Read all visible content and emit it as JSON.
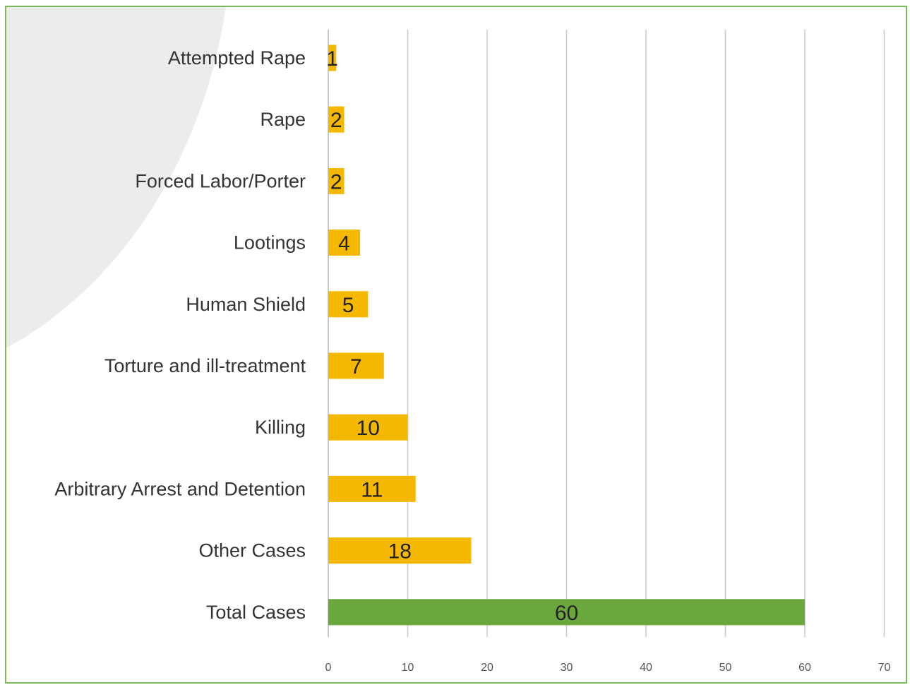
{
  "chart_data": {
    "type": "bar",
    "orientation": "horizontal",
    "categories": [
      "Attempted Rape",
      "Rape",
      "Forced Labor/Porter",
      "Lootings",
      "Human Shield",
      "Torture and ill-treatment",
      "Killing",
      "Arbitrary Arrest and Detention",
      "Other Cases",
      "Total Cases"
    ],
    "values": [
      1,
      2,
      2,
      4,
      5,
      7,
      10,
      11,
      18,
      60
    ],
    "value_labels": [
      "1",
      "2",
      "2",
      "4",
      "5",
      "7",
      "10",
      "11",
      "18",
      "60"
    ],
    "bar_colors": [
      "#f5b800",
      "#f5b800",
      "#f5b800",
      "#f5b800",
      "#f5b800",
      "#f5b800",
      "#f5b800",
      "#f5b800",
      "#f5b800",
      "#6aa83e"
    ],
    "x_ticks": [
      "0",
      "10",
      "20",
      "30",
      "40",
      "50",
      "60",
      "70"
    ],
    "xlim": [
      0,
      70
    ],
    "grid": "vertical",
    "title": "",
    "xlabel": "",
    "ylabel": ""
  },
  "colors": {
    "border": "#7cba57",
    "highlight_bar": "#f5b800",
    "total_bar": "#6aa83e",
    "gridline": "#c8c8c8"
  }
}
